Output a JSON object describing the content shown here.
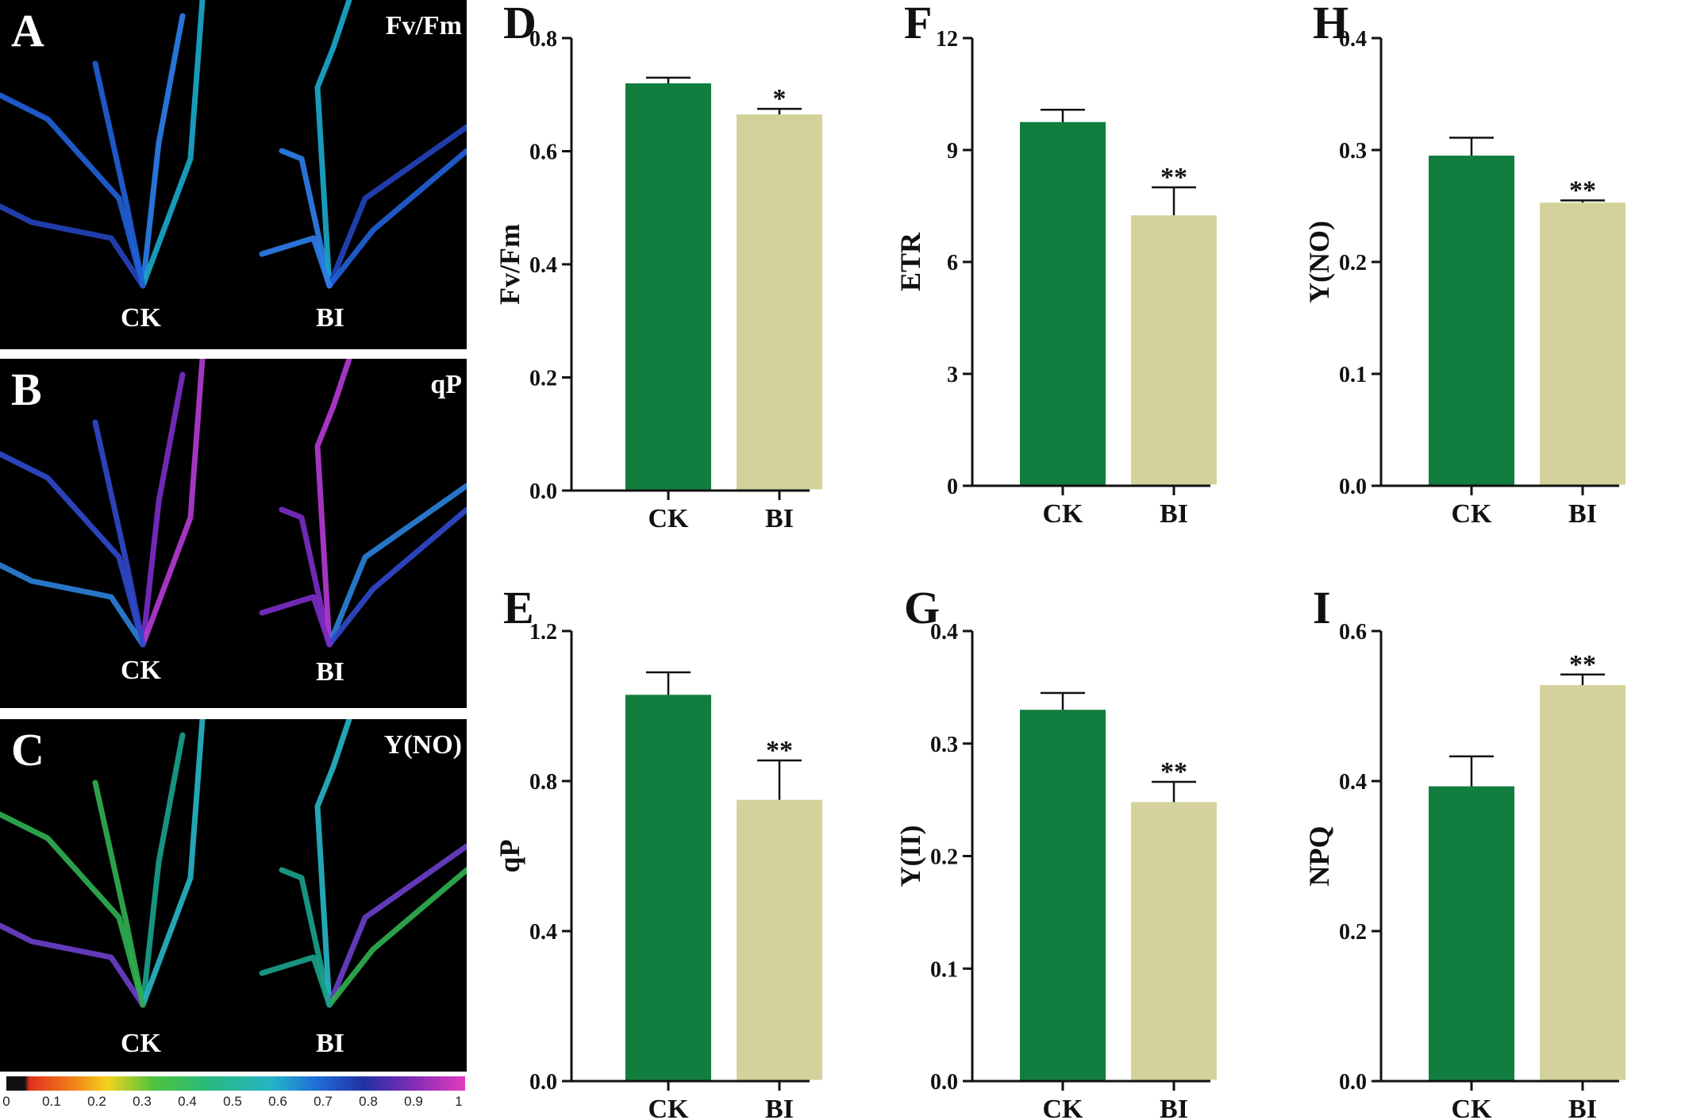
{
  "image_panels": [
    {
      "letter": "A",
      "metric": "Fv/Fm",
      "left_label": "CK",
      "right_label": "BI",
      "palette": "blue"
    },
    {
      "letter": "B",
      "metric": "qP",
      "left_label": "CK",
      "right_label": "BI",
      "palette": "purple"
    },
    {
      "letter": "C",
      "metric": "Y(NO)",
      "left_label": "CK",
      "right_label": "BI",
      "palette": "green"
    }
  ],
  "colorbar": {
    "ticks": [
      "0",
      "0.1",
      "0.2",
      "0.3",
      "0.4",
      "0.5",
      "0.6",
      "0.7",
      "0.8",
      "0.9",
      "1"
    ]
  },
  "colors": {
    "ck_bar": "#117d3e",
    "bi_bar": "#d3d29a",
    "axis": "#111111"
  },
  "chart_data": [
    {
      "panel": "D",
      "type": "bar",
      "categories": [
        "CK",
        "BI"
      ],
      "values": [
        0.72,
        0.665
      ],
      "errors": [
        0.01,
        0.01
      ],
      "significance": [
        "",
        "*"
      ],
      "ylabel": "Fv/Fm",
      "ylim": [
        0,
        0.8
      ],
      "yticks": [
        "0.0",
        "0.2",
        "0.4",
        "0.6",
        "0.8"
      ]
    },
    {
      "panel": "F",
      "type": "bar",
      "categories": [
        "CK",
        "BI"
      ],
      "values": [
        9.75,
        7.25
      ],
      "errors": [
        0.33,
        0.75
      ],
      "significance": [
        "",
        "**"
      ],
      "ylabel": "ETR",
      "ylim": [
        0,
        12
      ],
      "yticks": [
        "0",
        "3",
        "6",
        "9",
        "12"
      ]
    },
    {
      "panel": "H",
      "type": "bar",
      "categories": [
        "CK",
        "BI"
      ],
      "values": [
        0.295,
        0.253
      ],
      "errors": [
        0.016,
        0.002
      ],
      "significance": [
        "",
        "**"
      ],
      "ylabel": "Y(NO)",
      "ylim": [
        0,
        0.4
      ],
      "yticks": [
        "0.0",
        "0.1",
        "0.2",
        "0.3",
        "0.4"
      ]
    },
    {
      "panel": "E",
      "type": "bar",
      "categories": [
        "CK",
        "BI"
      ],
      "values": [
        1.03,
        0.75
      ],
      "errors": [
        0.06,
        0.105
      ],
      "significance": [
        "",
        "**"
      ],
      "ylabel": "qP",
      "ylim": [
        0,
        1.2
      ],
      "yticks": [
        "0.0",
        "0.4",
        "0.8",
        "1.2"
      ]
    },
    {
      "panel": "G",
      "type": "bar",
      "categories": [
        "CK",
        "BI"
      ],
      "values": [
        0.33,
        0.248
      ],
      "errors": [
        0.015,
        0.018
      ],
      "significance": [
        "",
        "**"
      ],
      "ylabel": "Y(II)",
      "ylim": [
        0,
        0.4
      ],
      "yticks": [
        "0.0",
        "0.1",
        "0.2",
        "0.3",
        "0.4"
      ]
    },
    {
      "panel": "I",
      "type": "bar",
      "categories": [
        "CK",
        "BI"
      ],
      "values": [
        0.393,
        0.528
      ],
      "errors": [
        0.04,
        0.014
      ],
      "significance": [
        "",
        "**"
      ],
      "ylabel": "NPQ",
      "ylim": [
        0,
        0.6
      ],
      "yticks": [
        "0.0",
        "0.2",
        "0.4",
        "0.6"
      ]
    }
  ]
}
